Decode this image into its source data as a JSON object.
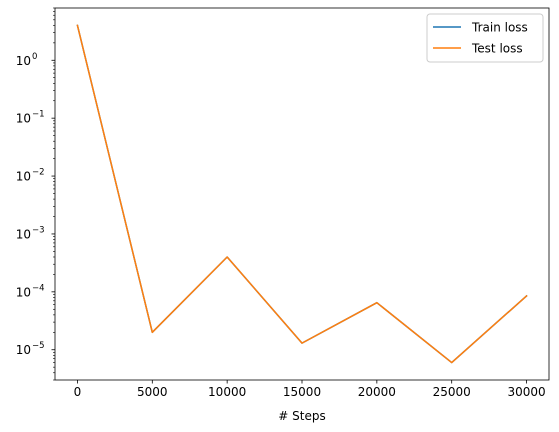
{
  "chart_data": {
    "type": "line",
    "title": "",
    "xlabel": "# Steps",
    "ylabel": "",
    "yscale": "log",
    "xlim": [
      -1500,
      31500
    ],
    "ylim": [
      3e-06,
      8
    ],
    "xticks": [
      0,
      5000,
      10000,
      15000,
      20000,
      25000,
      30000
    ],
    "xtick_labels": [
      "0",
      "5000",
      "10000",
      "15000",
      "20000",
      "25000",
      "30000"
    ],
    "yticks": [
      {
        "value": 1,
        "base": "10",
        "exp": "0"
      },
      {
        "value": 0.1,
        "base": "10",
        "exp": "−1"
      },
      {
        "value": 0.01,
        "base": "10",
        "exp": "−2"
      },
      {
        "value": 0.001,
        "base": "10",
        "exp": "−3"
      },
      {
        "value": 0.0001,
        "base": "10",
        "exp": "−4"
      },
      {
        "value": 1e-05,
        "base": "10",
        "exp": "−5"
      }
    ],
    "grid": false,
    "legend_position": "top-right",
    "x": [
      0,
      5000,
      10000,
      15000,
      20000,
      25000,
      30000
    ],
    "series": [
      {
        "name": "Train loss",
        "color": "#1f77b4",
        "values": [
          4.0,
          2e-05,
          0.0004,
          1.3e-05,
          6.5e-05,
          6e-06,
          8.5e-05
        ]
      },
      {
        "name": "Test loss",
        "color": "#ff7f0e",
        "values": [
          4.0,
          2e-05,
          0.0004,
          1.3e-05,
          6.5e-05,
          6e-06,
          8.5e-05
        ]
      }
    ]
  }
}
